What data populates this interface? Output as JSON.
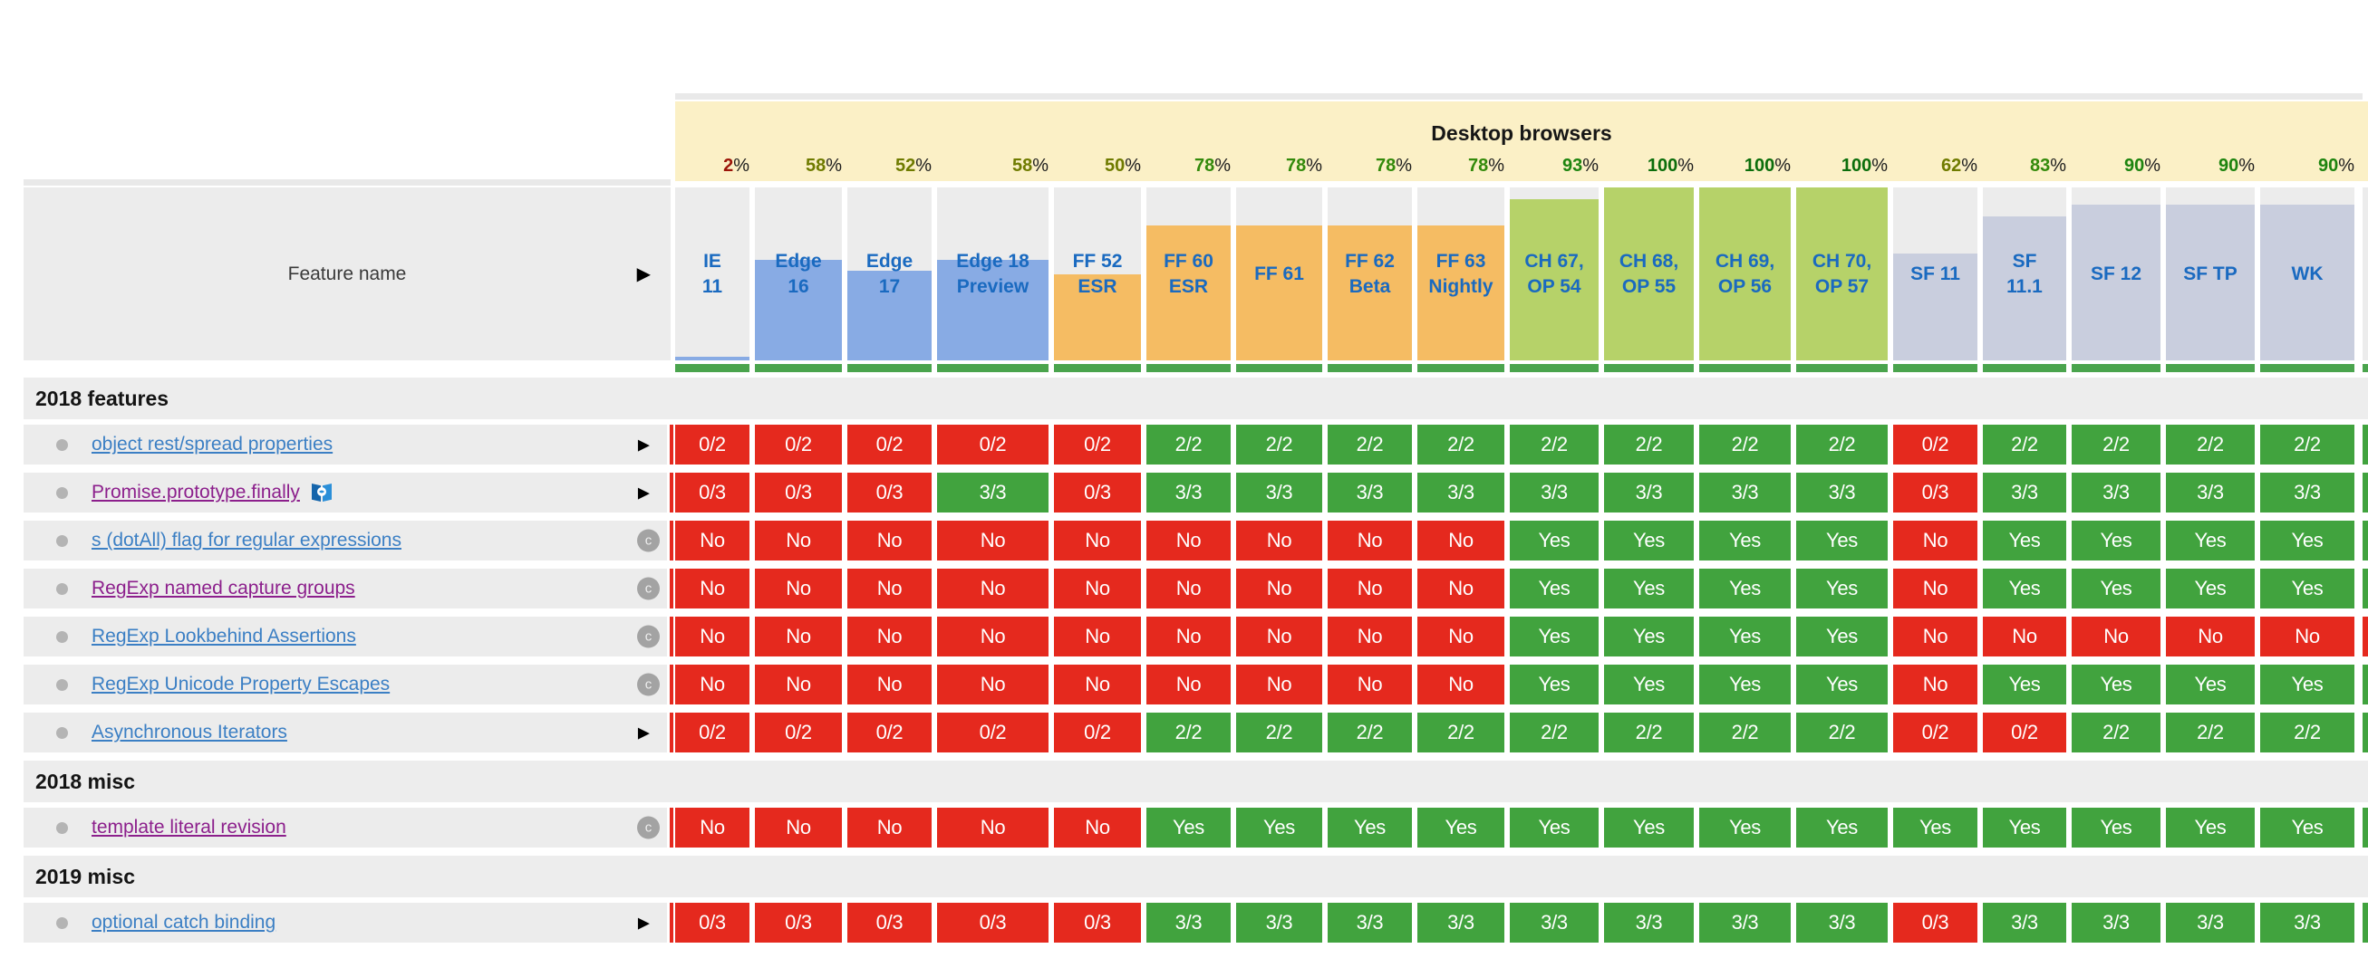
{
  "header": {
    "group_title": "Desktop browsers",
    "feature_col_label": "Feature name",
    "percent_sign": "%",
    "browsers": [
      {
        "id": "ie-11",
        "label_lines": [
          "IE",
          "11"
        ],
        "pct": 2,
        "family": "ie",
        "pct_color": "#9b1408"
      },
      {
        "id": "edge-16",
        "label_lines": [
          "Edge",
          "16"
        ],
        "pct": 58,
        "family": "edge",
        "pct_color": "#6f7b00"
      },
      {
        "id": "edge-17",
        "label_lines": [
          "Edge",
          "17"
        ],
        "pct": 52,
        "family": "edge",
        "pct_color": "#6f7b00"
      },
      {
        "id": "edge-18-preview",
        "label_lines": [
          "Edge 18",
          "Preview"
        ],
        "pct": 58,
        "family": "edge",
        "pct_color": "#6f7b00"
      },
      {
        "id": "ff-52-esr",
        "label_lines": [
          "FF 52",
          "ESR"
        ],
        "pct": 50,
        "family": "firefox",
        "pct_color": "#6f7b00"
      },
      {
        "id": "ff-60-esr",
        "label_lines": [
          "FF 60",
          "ESR"
        ],
        "pct": 78,
        "family": "firefox",
        "pct_color": "#338a0b"
      },
      {
        "id": "ff-61",
        "label_lines": [
          "FF 61"
        ],
        "pct": 78,
        "family": "firefox",
        "pct_color": "#338a0b"
      },
      {
        "id": "ff-62-beta",
        "label_lines": [
          "FF 62",
          "Beta"
        ],
        "pct": 78,
        "family": "firefox",
        "pct_color": "#338a0b"
      },
      {
        "id": "ff-63-nightly",
        "label_lines": [
          "FF 63",
          "Nightly"
        ],
        "pct": 78,
        "family": "firefox",
        "pct_color": "#338a0b"
      },
      {
        "id": "ch-67-op-54",
        "label_lines": [
          "CH 67,",
          "OP 54"
        ],
        "pct": 93,
        "family": "chrome",
        "pct_color": "#1d840f"
      },
      {
        "id": "ch-68-op-55",
        "label_lines": [
          "CH 68,",
          "OP 55"
        ],
        "pct": 100,
        "family": "chrome",
        "pct_color": "#0b6e0b"
      },
      {
        "id": "ch-69-op-56",
        "label_lines": [
          "CH 69,",
          "OP 56"
        ],
        "pct": 100,
        "family": "chrome",
        "pct_color": "#0b6e0b"
      },
      {
        "id": "ch-70-op-57",
        "label_lines": [
          "CH 70,",
          "OP 57"
        ],
        "pct": 100,
        "family": "chrome",
        "pct_color": "#0b6e0b"
      },
      {
        "id": "sf-11",
        "label_lines": [
          "SF 11"
        ],
        "pct": 62,
        "family": "safari",
        "pct_color": "#6f7b00"
      },
      {
        "id": "sf-11-1",
        "label_lines": [
          "SF",
          "11.1"
        ],
        "pct": 83,
        "family": "safari",
        "pct_color": "#338a0b"
      },
      {
        "id": "sf-12",
        "label_lines": [
          "SF 12"
        ],
        "pct": 90,
        "family": "safari",
        "pct_color": "#1d840f"
      },
      {
        "id": "sf-tp",
        "label_lines": [
          "SF TP"
        ],
        "pct": 90,
        "family": "safari",
        "pct_color": "#1d840f"
      },
      {
        "id": "wk",
        "label_lines": [
          "WK"
        ],
        "pct": 90,
        "family": "safari",
        "pct_color": "#1d840f"
      }
    ]
  },
  "icons": {
    "expand_arrow": "▶",
    "note_badge": "c"
  },
  "colors": {
    "yes_green": "#41a33e",
    "no_red": "#e5291e",
    "header_underline_green": "#4aa44d",
    "yellow_band": "#fbf0c6",
    "strip_gray": "#e9e9e9",
    "cell_gray": "#ececec",
    "section_gray": "#ededed",
    "link_blue": "#3b7fc4",
    "link_visited_purple": "#8c1f8c",
    "browser_label_blue": "#1a6ac0",
    "fills": {
      "ie": "#88abe4",
      "edge": "#88abe4",
      "firefox": "#f5bc63",
      "chrome": "#b6d269",
      "safari": "#c9cede"
    }
  },
  "sections": [
    {
      "title": "2018 features",
      "features": [
        {
          "name": "object rest/spread properties",
          "visited": false,
          "flag": false,
          "marker": "expand-arrow",
          "values": [
            "0/2",
            "0/2",
            "0/2",
            "0/2",
            "0/2",
            "2/2",
            "2/2",
            "2/2",
            "2/2",
            "2/2",
            "2/2",
            "2/2",
            "2/2",
            "0/2",
            "2/2",
            "2/2",
            "2/2",
            "2/2"
          ],
          "pass": "000001111111101111"
        },
        {
          "name": "Promise.prototype.finally",
          "visited": true,
          "flag": true,
          "marker": "expand-arrow",
          "values": [
            "0/3",
            "0/3",
            "0/3",
            "3/3",
            "0/3",
            "3/3",
            "3/3",
            "3/3",
            "3/3",
            "3/3",
            "3/3",
            "3/3",
            "3/3",
            "0/3",
            "3/3",
            "3/3",
            "3/3",
            "3/3"
          ],
          "pass": "000101111111101111"
        },
        {
          "name": "s (dotAll) flag for regular expressions",
          "visited": false,
          "flag": false,
          "marker": "c-note",
          "values": [
            "No",
            "No",
            "No",
            "No",
            "No",
            "No",
            "No",
            "No",
            "No",
            "Yes",
            "Yes",
            "Yes",
            "Yes",
            "No",
            "Yes",
            "Yes",
            "Yes",
            "Yes"
          ],
          "pass": "000000000111101111"
        },
        {
          "name": "RegExp named capture groups",
          "visited": true,
          "flag": false,
          "marker": "c-note",
          "values": [
            "No",
            "No",
            "No",
            "No",
            "No",
            "No",
            "No",
            "No",
            "No",
            "Yes",
            "Yes",
            "Yes",
            "Yes",
            "No",
            "Yes",
            "Yes",
            "Yes",
            "Yes"
          ],
          "pass": "000000000111101111"
        },
        {
          "name": "RegExp Lookbehind Assertions",
          "visited": false,
          "flag": false,
          "marker": "c-note",
          "values": [
            "No",
            "No",
            "No",
            "No",
            "No",
            "No",
            "No",
            "No",
            "No",
            "Yes",
            "Yes",
            "Yes",
            "Yes",
            "No",
            "No",
            "No",
            "No",
            "No"
          ],
          "pass": "000000000111100000"
        },
        {
          "name": "RegExp Unicode Property Escapes",
          "visited": false,
          "flag": false,
          "marker": "c-note",
          "values": [
            "No",
            "No",
            "No",
            "No",
            "No",
            "No",
            "No",
            "No",
            "No",
            "Yes",
            "Yes",
            "Yes",
            "Yes",
            "No",
            "Yes",
            "Yes",
            "Yes",
            "Yes"
          ],
          "pass": "000000000111101111"
        },
        {
          "name": "Asynchronous Iterators",
          "visited": false,
          "flag": false,
          "marker": "expand-arrow",
          "values": [
            "0/2",
            "0/2",
            "0/2",
            "0/2",
            "0/2",
            "2/2",
            "2/2",
            "2/2",
            "2/2",
            "2/2",
            "2/2",
            "2/2",
            "2/2",
            "0/2",
            "0/2",
            "2/2",
            "2/2",
            "2/2"
          ],
          "pass": "000001111111100111"
        }
      ]
    },
    {
      "title": "2018 misc",
      "features": [
        {
          "name": "template literal revision",
          "visited": true,
          "flag": false,
          "marker": "c-note",
          "values": [
            "No",
            "No",
            "No",
            "No",
            "No",
            "Yes",
            "Yes",
            "Yes",
            "Yes",
            "Yes",
            "Yes",
            "Yes",
            "Yes",
            "Yes",
            "Yes",
            "Yes",
            "Yes",
            "Yes"
          ],
          "pass": "000001111111111111"
        }
      ]
    },
    {
      "title": "2019 misc",
      "features": [
        {
          "name": "optional catch binding",
          "visited": false,
          "flag": false,
          "marker": "expand-arrow",
          "values": [
            "0/3",
            "0/3",
            "0/3",
            "0/3",
            "0/3",
            "3/3",
            "3/3",
            "3/3",
            "3/3",
            "3/3",
            "3/3",
            "3/3",
            "3/3",
            "0/3",
            "3/3",
            "3/3",
            "3/3",
            "3/3"
          ],
          "pass": "000001111111101111"
        }
      ]
    }
  ]
}
